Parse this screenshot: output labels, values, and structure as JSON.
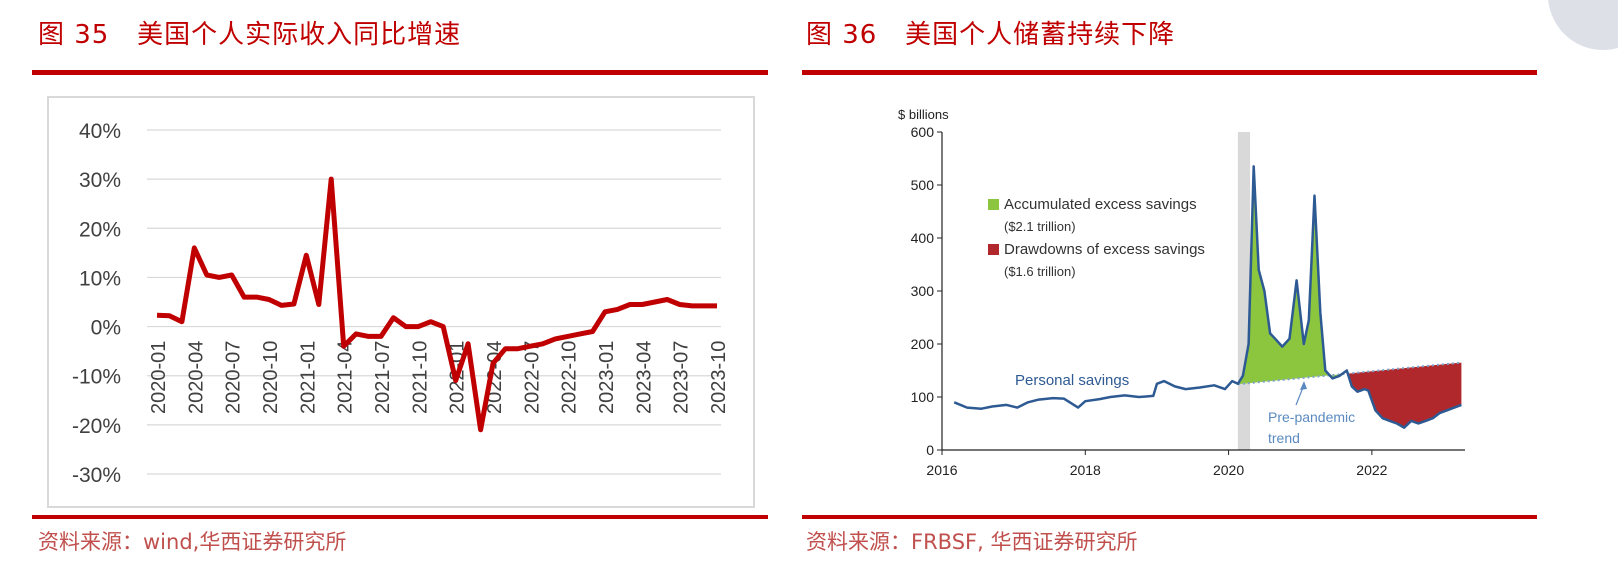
{
  "left": {
    "title": "图 35   美国个人实际收入同比增速",
    "source": "资料来源：wind,华西证券研究所"
  },
  "right": {
    "title": "图 36   美国个人储蓄持续下降",
    "source": "资料来源：FRBSF, 华西证券研究所"
  },
  "colors": {
    "brand_red": "#c00000",
    "line_red": "#c00000",
    "blue": "#2e5a94",
    "green": "#8cc63f",
    "dark_red": "#b0282c"
  },
  "chart_data": [
    {
      "type": "line",
      "title": "",
      "ylim": [
        -30,
        40
      ],
      "yticks": [
        40,
        30,
        20,
        10,
        0,
        -10,
        -20,
        -30
      ],
      "ytick_labels": [
        "40%",
        "30%",
        "20%",
        "10%",
        "0%",
        "-10%",
        "-20%",
        "-30%"
      ],
      "x_tick_labels": [
        "2020-01",
        "2020-04",
        "2020-07",
        "2020-10",
        "2021-01",
        "2021-04",
        "2021-07",
        "2021-10",
        "2022-01",
        "2022-04",
        "2022-07",
        "2022-10",
        "2023-01",
        "2023-04",
        "2023-07",
        "2023-10"
      ],
      "x": [
        "2020-01",
        "2020-02",
        "2020-03",
        "2020-04",
        "2020-05",
        "2020-06",
        "2020-07",
        "2020-08",
        "2020-09",
        "2020-10",
        "2020-11",
        "2020-12",
        "2021-01",
        "2021-02",
        "2021-03",
        "2021-04",
        "2021-05",
        "2021-06",
        "2021-07",
        "2021-08",
        "2021-09",
        "2021-10",
        "2021-11",
        "2021-12",
        "2022-01",
        "2022-02",
        "2022-03",
        "2022-04",
        "2022-05",
        "2022-06",
        "2022-07",
        "2022-08",
        "2022-09",
        "2022-10",
        "2022-11",
        "2022-12",
        "2023-01",
        "2023-02",
        "2023-03",
        "2023-04",
        "2023-05",
        "2023-06",
        "2023-07",
        "2023-08",
        "2023-09",
        "2023-10"
      ],
      "series": [
        {
          "values": [
            2.3,
            2.2,
            1.0,
            16.0,
            10.5,
            10.0,
            10.5,
            6.0,
            6.0,
            5.5,
            4.3,
            4.6,
            14.5,
            4.5,
            30.0,
            -4.0,
            -1.5,
            -2.0,
            -2.0,
            1.8,
            0.0,
            0.0,
            1.0,
            0.0,
            -11.0,
            -3.5,
            -21.0,
            -7.5,
            -4.5,
            -4.5,
            -4.0,
            -3.5,
            -2.5,
            -2.0,
            -1.5,
            -1.0,
            3.0,
            3.5,
            4.5,
            4.5,
            5.0,
            5.5,
            4.5,
            4.2,
            4.2,
            4.2
          ]
        }
      ],
      "grid": true
    },
    {
      "type": "area",
      "ylabel": "$ billions",
      "ylim": [
        0,
        600
      ],
      "yticks": [
        0,
        100,
        200,
        300,
        400,
        500,
        600
      ],
      "xlim": [
        2016,
        2023.3
      ],
      "xticks": [
        2016,
        2018,
        2020,
        2022
      ],
      "recession_shading": [
        2020.13,
        2020.3
      ],
      "legend": [
        {
          "label": "Accumulated excess savings",
          "sub": "($2.1 trillion)",
          "color": "#8cc63f"
        },
        {
          "label": "Drawdowns of excess savings",
          "sub": "($1.6 trillion)",
          "color": "#b0282c"
        }
      ],
      "annotations": {
        "personal_savings": "Personal savings",
        "trend_line1": "Pre-pandemic",
        "trend_line2": "trend"
      },
      "trend": {
        "x": [
          2016,
          2023.25
        ],
        "y": [
          70,
          165
        ]
      },
      "series": [
        {
          "name": "Personal savings",
          "x": [
            2016.17,
            2016.35,
            2016.55,
            2016.7,
            2016.9,
            2017.05,
            2017.2,
            2017.35,
            2017.55,
            2017.7,
            2017.9,
            2018.0,
            2018.2,
            2018.35,
            2018.55,
            2018.75,
            2018.95,
            2019.0,
            2019.1,
            2019.25,
            2019.4,
            2019.6,
            2019.8,
            2019.95,
            2020.05,
            2020.13,
            2020.2,
            2020.28,
            2020.35,
            2020.42,
            2020.5,
            2020.58,
            2020.65,
            2020.75,
            2020.85,
            2020.95,
            2021.05,
            2021.12,
            2021.2,
            2021.28,
            2021.35,
            2021.45,
            2021.55,
            2021.65,
            2021.72,
            2021.8,
            2021.9,
            2021.95,
            2022.05,
            2022.15,
            2022.25,
            2022.35,
            2022.45,
            2022.55,
            2022.65,
            2022.75,
            2022.85,
            2022.95,
            2023.05,
            2023.15,
            2023.25
          ],
          "y": [
            90,
            80,
            78,
            82,
            85,
            80,
            90,
            95,
            98,
            97,
            80,
            92,
            96,
            100,
            103,
            100,
            102,
            125,
            130,
            120,
            115,
            118,
            122,
            115,
            130,
            125,
            140,
            200,
            535,
            340,
            300,
            220,
            210,
            195,
            210,
            320,
            200,
            245,
            480,
            260,
            150,
            135,
            140,
            150,
            120,
            110,
            115,
            112,
            75,
            60,
            55,
            50,
            42,
            55,
            50,
            55,
            60,
            70,
            75,
            80,
            85
          ]
        }
      ]
    }
  ]
}
